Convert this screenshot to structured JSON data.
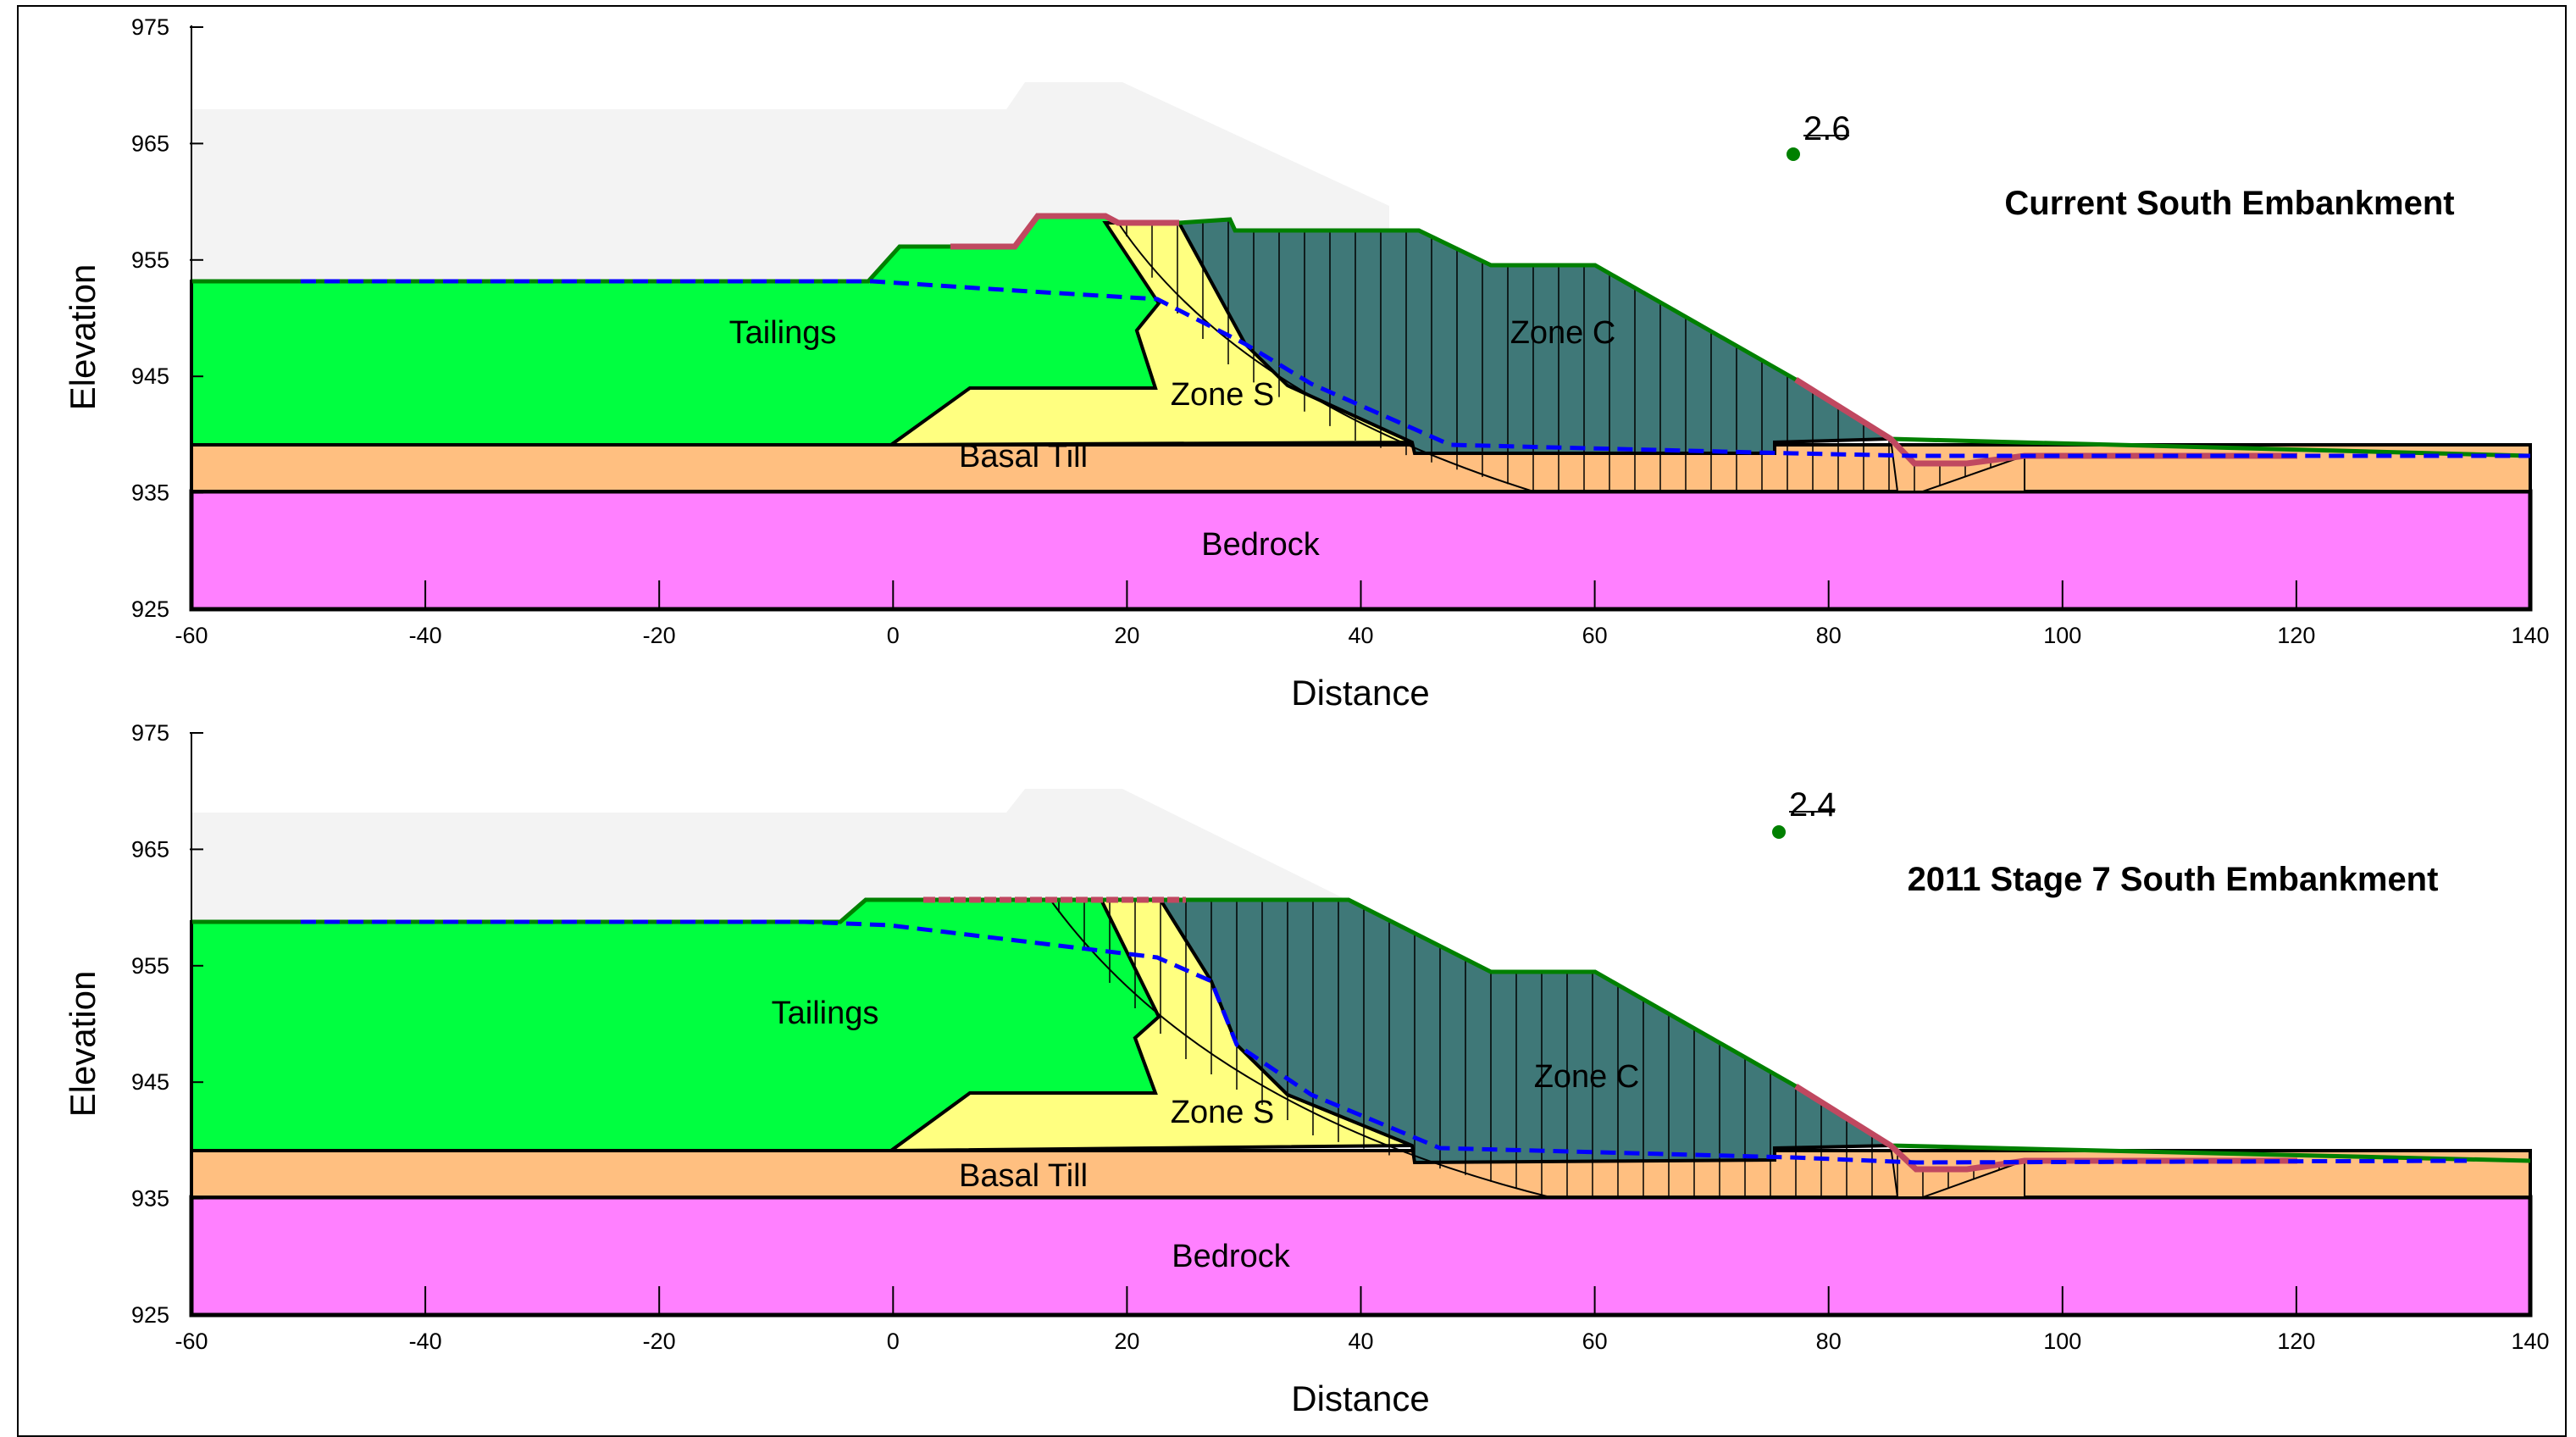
{
  "panels": [
    {
      "title": "Current South Embankment",
      "factor_of_safety": "2.6",
      "x_axis_label": "Distance",
      "y_axis_label": "Elevation",
      "x_ticks": [
        "-60",
        "-40",
        "-20",
        "0",
        "20",
        "40",
        "60",
        "80",
        "100",
        "120",
        "140"
      ],
      "y_ticks": [
        "975",
        "965",
        "955",
        "945",
        "935",
        "925"
      ],
      "materials": {
        "tailings": "Tailings",
        "zone_s": "Zone S",
        "zone_c": "Zone C",
        "basal_till": "Basal Till",
        "bedrock": "Bedrock"
      }
    },
    {
      "title": "2011 Stage 7 South Embankment",
      "factor_of_safety": "2.4",
      "x_axis_label": "Distance",
      "y_axis_label": "Elevation",
      "x_ticks": [
        "-60",
        "-40",
        "-20",
        "0",
        "20",
        "40",
        "60",
        "80",
        "100",
        "120",
        "140"
      ],
      "y_ticks": [
        "975",
        "965",
        "955",
        "945",
        "935",
        "925"
      ],
      "materials": {
        "tailings": "Tailings",
        "zone_s": "Zone S",
        "zone_c": "Zone C",
        "basal_till": "Basal Till",
        "bedrock": "Bedrock"
      }
    }
  ],
  "colors": {
    "tailings": "#00ff40",
    "zone_s": "#ffff80",
    "zone_c": "#3f7878",
    "basal_till": "#ffbf80",
    "bedrock": "#ff80ff",
    "phreatic_line": "#0000ff",
    "slip_limits": "#c04860",
    "surface_line": "#008000"
  }
}
